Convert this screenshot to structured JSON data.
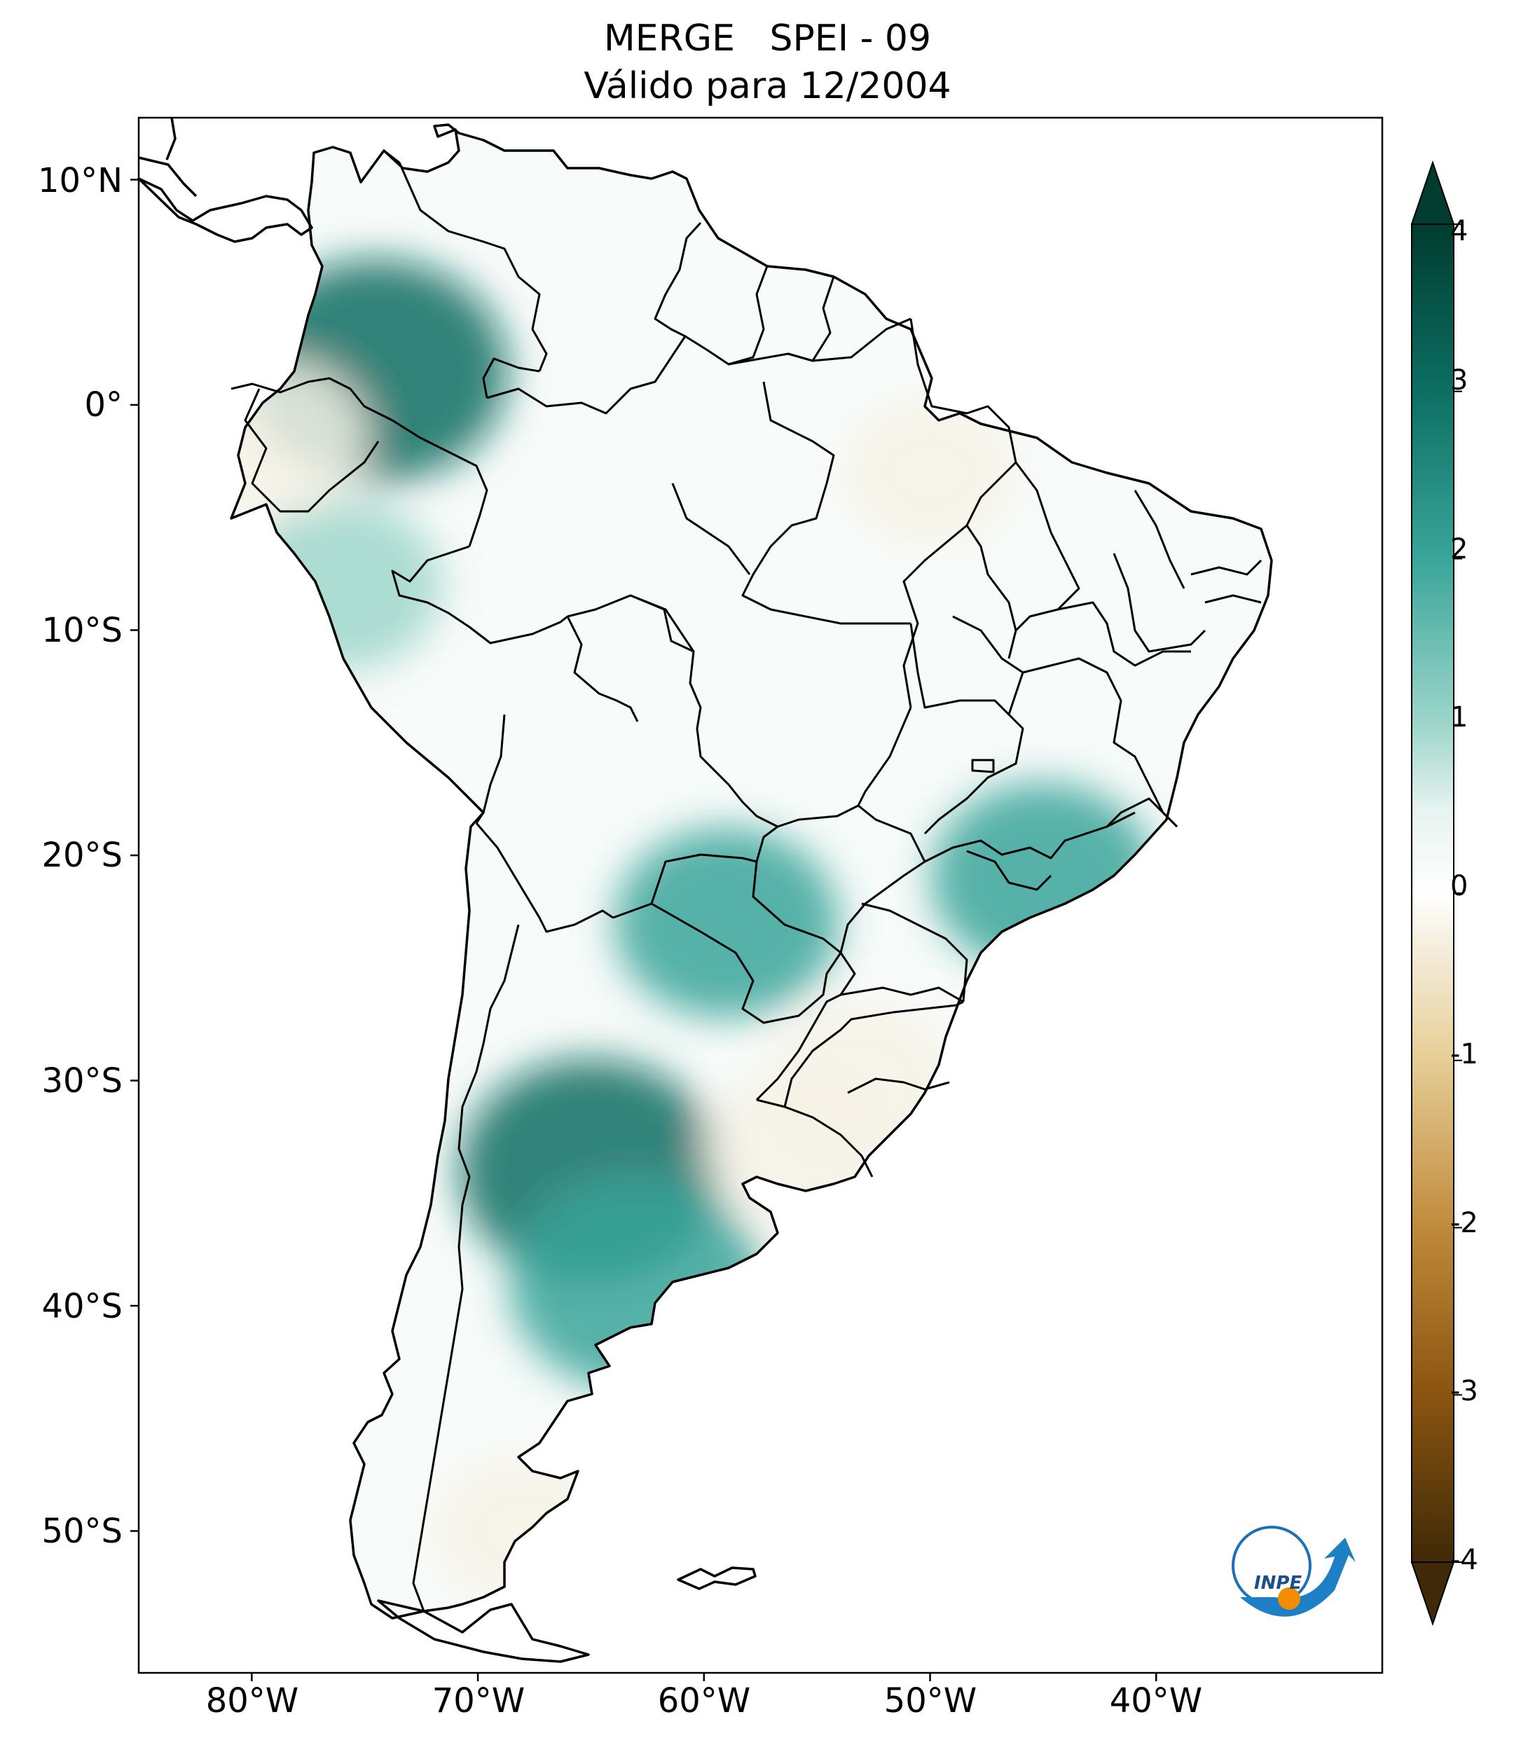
{
  "title": {
    "line1": "MERGE   SPEI - 09",
    "line2": "Válido para 12/2004"
  },
  "axes": {
    "lat_ticks": [
      "10°N",
      "0°",
      "10°S",
      "20°S",
      "30°S",
      "40°S",
      "50°S"
    ],
    "lon_ticks": [
      "80°W",
      "70°W",
      "60°W",
      "50°W",
      "40°W"
    ]
  },
  "colorbar": {
    "ticks": [
      "4",
      "3",
      "2",
      "1",
      "0",
      "-1",
      "-2",
      "-3",
      "-4"
    ],
    "range": [
      -4,
      4
    ],
    "extend": "both",
    "colormap": "BrBG",
    "colors": [
      "#3f2a08",
      "#8a5410",
      "#c08a3c",
      "#e6cd95",
      "#f7f2e6",
      "#ffffff",
      "#e8f4f1",
      "#9fd6cb",
      "#3aa59a",
      "#0d6f63",
      "#003c2f"
    ]
  },
  "map": {
    "extent": {
      "lon_min": -85,
      "lon_max": -30,
      "lat_min": -56,
      "lat_max": 13
    },
    "anomalies": [
      {
        "region": "southern Colombia",
        "lon": -74.5,
        "lat": 1.5,
        "spei": 2.8
      },
      {
        "region": "Peru",
        "lon": -76,
        "lat": -8,
        "spei": 1.5
      },
      {
        "region": "Ecuador",
        "lon": -79,
        "lat": -1.5,
        "spei": -1.2
      },
      {
        "region": "central Argentina",
        "lon": -65,
        "lat": -34,
        "spei": 2.8
      },
      {
        "region": "Río Negro, Argentina",
        "lon": -63,
        "lat": -39,
        "spei": 2.6
      },
      {
        "region": "Paraguay",
        "lon": -59,
        "lat": -23,
        "spei": 2.0
      },
      {
        "region": "southeastern Brazil",
        "lon": -45,
        "lat": -21,
        "spei": 2.0
      },
      {
        "region": "Rio Grande do Sul",
        "lon": -53,
        "lat": -30,
        "spei": -1.2
      },
      {
        "region": "Uruguay",
        "lon": -56,
        "lat": -33,
        "spei": -1.1
      },
      {
        "region": "Pará",
        "lon": -50,
        "lat": -3,
        "spei": -0.9
      },
      {
        "region": "Santa Cruz, Argentina",
        "lon": -68,
        "lat": -50,
        "spei": -1.0
      }
    ]
  },
  "logo": {
    "text": "INPE"
  }
}
